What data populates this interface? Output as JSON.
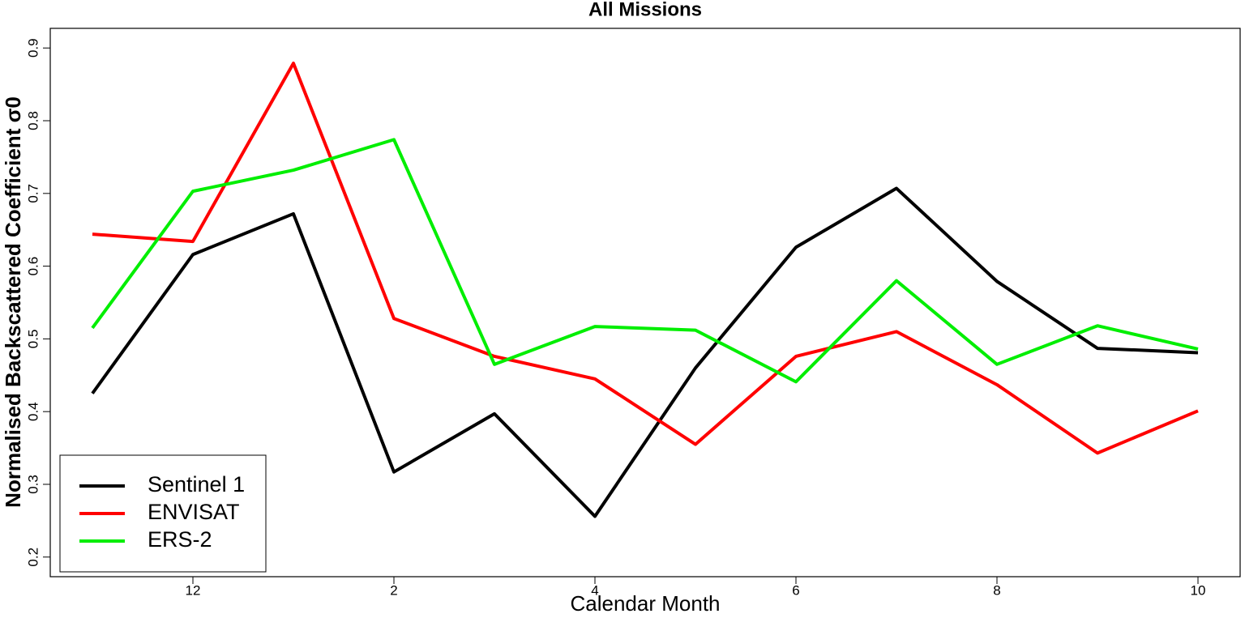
{
  "chart_data": {
    "type": "line",
    "title": "All Missions",
    "x_label": "Calendar Month",
    "y_label": "Normalised Backscattered Coefficient σ0",
    "categories": [
      null,
      "12",
      null,
      "2",
      null,
      "4",
      null,
      "6",
      null,
      "8",
      null,
      "10"
    ],
    "series": [
      {
        "name": "Sentinel 1",
        "color": "#000000",
        "values": [
          0.425,
          0.616,
          0.672,
          0.317,
          0.397,
          0.256,
          0.46,
          0.626,
          0.707,
          0.579,
          0.487,
          0.481
        ]
      },
      {
        "name": "ENVISAT",
        "color": "#ff0000",
        "values": [
          0.644,
          0.634,
          0.879,
          0.528,
          0.476,
          0.445,
          0.355,
          0.476,
          0.51,
          0.437,
          0.343,
          0.401
        ]
      },
      {
        "name": "ERS-2",
        "color": "#00ee00",
        "values": [
          0.515,
          0.703,
          0.732,
          0.774,
          0.465,
          0.517,
          0.512,
          0.441,
          0.58,
          0.465,
          0.518,
          0.486
        ]
      }
    ],
    "ylim": [
      0.173,
      0.927
    ],
    "yticks": [
      0.2,
      0.3,
      0.4,
      0.5,
      0.6,
      0.7,
      0.8,
      0.9
    ],
    "legend": "bottom-left"
  }
}
